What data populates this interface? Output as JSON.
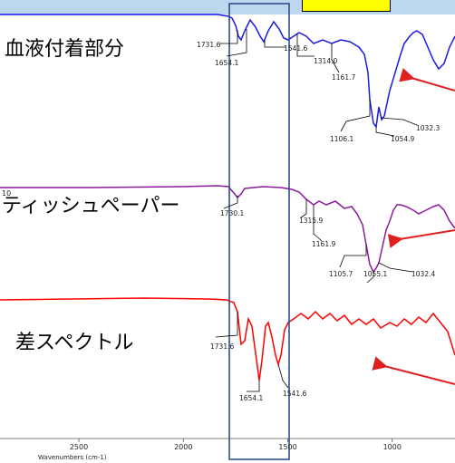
{
  "header": {
    "badge_text": ""
  },
  "colors": {
    "blood": "#1a1ae6",
    "tissue": "#8b1a9c",
    "difference": "#ff0000",
    "highlight_box": "#2f4e8a",
    "arrows": "#e02020",
    "top_bar": "#bdd7ee",
    "badge": "#ffff00"
  },
  "labels": {
    "blood": "血液付着部分",
    "tissue": "ティッシュペーパー",
    "difference": "差スペクトル",
    "tissue_axis_mark": "10"
  },
  "axis": {
    "xlabel": "Wavenumbers (cm-1)"
  },
  "chart_data": {
    "type": "line",
    "x_axis": {
      "range": [
        3000,
        500
      ],
      "ticks": [
        2500,
        2000,
        1500,
        1000
      ]
    },
    "series": [
      {
        "name": "",
        "key": "blood",
        "peaks": [
          {
            "x": 1731.6,
            "label": "1731.6"
          },
          {
            "x": 1654.1,
            "label": "1654.1"
          },
          {
            "x": 1541.6,
            "label": "1541.6"
          },
          {
            "x": 1314.0,
            "label": "1314.0"
          },
          {
            "x": 1161.7,
            "label": "1161.7"
          },
          {
            "x": 1106.1,
            "label": "1106.1"
          },
          {
            "x": 1054.9,
            "label": "1054.9"
          },
          {
            "x": 1032.3,
            "label": "1032.3"
          }
        ]
      },
      {
        "name": "",
        "key": "tissue",
        "peaks": [
          {
            "x": 1730.1,
            "label": "1730.1"
          },
          {
            "x": 1315.9,
            "label": "1315.9"
          },
          {
            "x": 1161.9,
            "label": "1161.9"
          },
          {
            "x": 1105.7,
            "label": "1105.7"
          },
          {
            "x": 1055.1,
            "label": "1055.1"
          },
          {
            "x": 1032.4,
            "label": "1032.4"
          }
        ]
      },
      {
        "name": "",
        "key": "difference",
        "peaks": [
          {
            "x": 1731.6,
            "label": "1731.6"
          },
          {
            "x": 1654.1,
            "label": "1654.1"
          },
          {
            "x": 1541.6,
            "label": "1541.6"
          }
        ]
      }
    ],
    "highlight_region": [
      1755,
      1530
    ]
  }
}
